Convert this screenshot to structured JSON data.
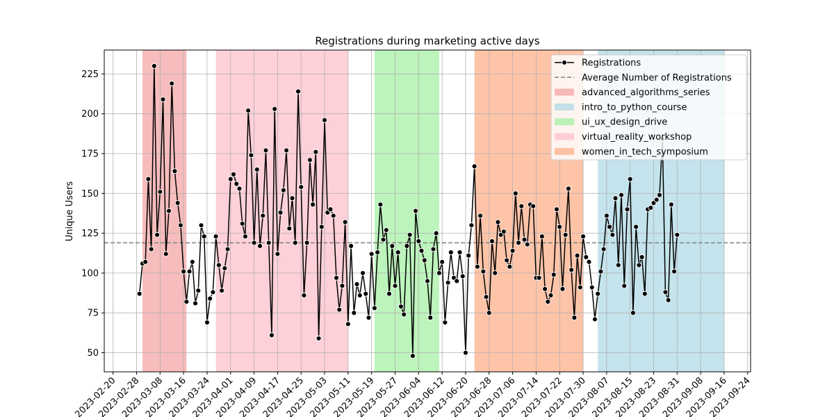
{
  "chart_data": {
    "type": "line",
    "title": "Registrations during marketing active days",
    "xlabel": "",
    "ylabel": "Unique Users",
    "x_ticks": [
      "2023-02-20",
      "2023-02-28",
      "2023-03-08",
      "2023-03-16",
      "2023-03-24",
      "2023-04-01",
      "2023-04-09",
      "2023-04-17",
      "2023-04-25",
      "2023-05-03",
      "2023-05-11",
      "2023-05-19",
      "2023-05-27",
      "2023-06-04",
      "2023-06-12",
      "2023-06-20",
      "2023-06-28",
      "2023-07-06",
      "2023-07-14",
      "2023-07-22",
      "2023-07-30",
      "2023-08-07",
      "2023-08-15",
      "2023-08-23",
      "2023-08-31",
      "2023-09-08",
      "2023-09-16",
      "2023-09-24"
    ],
    "y_ticks": [
      50,
      75,
      100,
      125,
      150,
      175,
      200,
      225
    ],
    "xlim": [
      "2023-02-17",
      "2023-09-25"
    ],
    "ylim": [
      38,
      240
    ],
    "grid": true,
    "legend_position": "top-right",
    "average": 119,
    "series": [
      {
        "name": "Registrations",
        "color": "#000000",
        "marker": "circle",
        "x_start": "2023-03-01",
        "values": [
          87,
          106,
          107,
          159,
          115,
          230,
          124,
          151,
          209,
          112,
          139,
          219,
          164,
          144,
          130,
          101,
          82,
          101,
          107,
          81,
          89,
          130,
          123,
          69,
          84,
          88,
          123,
          105,
          89,
          103,
          115,
          159,
          162,
          156,
          153,
          131,
          123,
          202,
          174,
          119,
          165,
          117,
          136,
          177,
          119,
          61,
          203,
          112,
          138,
          152,
          177,
          128,
          147,
          119,
          214,
          154,
          86,
          119,
          171,
          143,
          176,
          59,
          129,
          196,
          138,
          140,
          136,
          97,
          77,
          92,
          132,
          68,
          117,
          75,
          93,
          86,
          100,
          87,
          72,
          112,
          78,
          113,
          143,
          121,
          127,
          87,
          117,
          92,
          113,
          79,
          74,
          117,
          124,
          48,
          139,
          120,
          114,
          108,
          95,
          72,
          115,
          125,
          100,
          107,
          69,
          94,
          113,
          97,
          95,
          113,
          98,
          50,
          111,
          130,
          167,
          104,
          136,
          101,
          85,
          75,
          120,
          100,
          132,
          124,
          126,
          108,
          104,
          114,
          150,
          119,
          142,
          121,
          118,
          143,
          142,
          97,
          97,
          123,
          90,
          82,
          86,
          99,
          140,
          129,
          90,
          124,
          153,
          102,
          72,
          111,
          91,
          123,
          110,
          107,
          91,
          71,
          87,
          101,
          115,
          136,
          129,
          124,
          147,
          105,
          149,
          92,
          140,
          159,
          75,
          129,
          105,
          110,
          87,
          140,
          141,
          144,
          146,
          149,
          184,
          88,
          83,
          143,
          101,
          124
        ]
      }
    ],
    "campaigns": [
      {
        "name": "advanced_algorithms_series",
        "start": "2023-03-02",
        "end": "2023-03-17",
        "color": "#f4a6a6"
      },
      {
        "name": "intro_to_python_course",
        "start": "2023-08-04",
        "end": "2023-09-16",
        "color": "#b0dae6"
      },
      {
        "name": "ui_ux_design_drive",
        "start": "2023-05-20",
        "end": "2023-06-11",
        "color": "#a6f0a6"
      },
      {
        "name": "virtual_reality_workshop",
        "start": "2023-03-27",
        "end": "2023-05-11",
        "color": "#fec0cb"
      },
      {
        "name": "women_in_tech_symposium",
        "start": "2023-06-23",
        "end": "2023-07-30",
        "color": "#fdb08b"
      }
    ],
    "legend": [
      {
        "label": "Registrations",
        "kind": "line-marker",
        "color": "#000000"
      },
      {
        "label": "Average Number of Registrations",
        "kind": "dashed",
        "color": "#808080"
      },
      {
        "label": "advanced_algorithms_series",
        "kind": "patch",
        "color": "#f4a6a6"
      },
      {
        "label": "intro_to_python_course",
        "kind": "patch",
        "color": "#b0dae6"
      },
      {
        "label": "ui_ux_design_drive",
        "kind": "patch",
        "color": "#a6f0a6"
      },
      {
        "label": "virtual_reality_workshop",
        "kind": "patch",
        "color": "#fec0cb"
      },
      {
        "label": "women_in_tech_symposium",
        "kind": "patch",
        "color": "#fdb08b"
      }
    ]
  }
}
